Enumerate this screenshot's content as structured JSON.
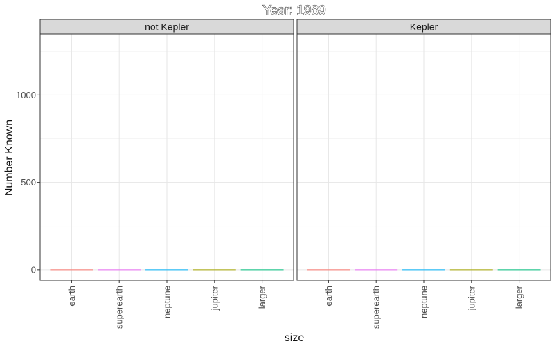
{
  "chart_data": {
    "type": "bar",
    "title": "Year: 1989",
    "xlabel": "size",
    "ylabel": "Number Known",
    "categories": [
      "earth",
      "superearth",
      "neptune",
      "jupiter",
      "larger"
    ],
    "colors": [
      "#F8766D",
      "#E76BF3",
      "#00B0F6",
      "#A3A500",
      "#00BF7D"
    ],
    "facets": [
      {
        "label": "not Kepler",
        "values": [
          0,
          0,
          0,
          0,
          0
        ]
      },
      {
        "label": "Kepler",
        "values": [
          0,
          0,
          0,
          0,
          0
        ]
      }
    ],
    "ylim": [
      -60,
      1350
    ],
    "yticks": [
      0,
      500,
      1000
    ],
    "grid": true
  }
}
